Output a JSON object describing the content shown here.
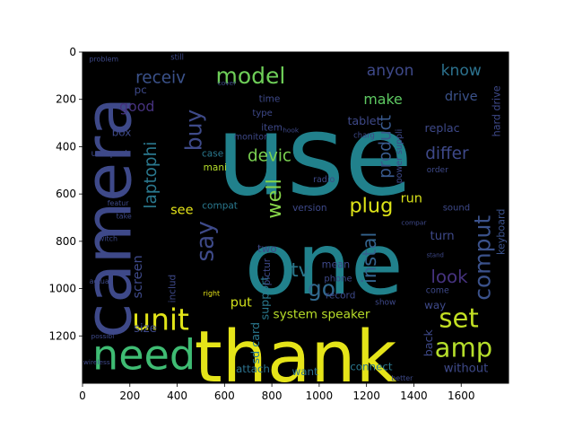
{
  "chart_data": {
    "type": "wordcloud",
    "title": "",
    "xlabel": "",
    "ylabel": "",
    "xlim": [
      0,
      1800
    ],
    "ylim": [
      1400,
      0
    ],
    "image_width": 1800,
    "image_height": 1400,
    "x_ticks": [
      0,
      200,
      400,
      600,
      800,
      1000,
      1200,
      1400,
      1600
    ],
    "y_ticks": [
      0,
      200,
      400,
      600,
      800,
      1000,
      1200
    ],
    "x_tick_labels": [
      "0",
      "200",
      "400",
      "600",
      "800",
      "1000",
      "1200",
      "1400",
      "1600"
    ],
    "y_tick_labels": [
      "0",
      "200",
      "400",
      "600",
      "800",
      "1000",
      "1200"
    ],
    "background": "#000000",
    "colormap": "viridis",
    "words": [
      {
        "text": "use",
        "x": 980,
        "y": 440,
        "size": 470,
        "color": "#21818c",
        "rot": 0
      },
      {
        "text": "one",
        "x": 1020,
        "y": 900,
        "size": 360,
        "color": "#21818c",
        "rot": 0
      },
      {
        "text": "thank",
        "x": 900,
        "y": 1290,
        "size": 300,
        "color": "#e5e419",
        "rot": 0
      },
      {
        "text": "camera",
        "x": 110,
        "y": 700,
        "size": 270,
        "color": "#3e4989",
        "rot": -90
      },
      {
        "text": "need",
        "x": 260,
        "y": 1280,
        "size": 175,
        "color": "#3fbc73",
        "rot": 0
      },
      {
        "text": "unit",
        "x": 330,
        "y": 1130,
        "size": 125,
        "color": "#e2e418",
        "rot": 0
      },
      {
        "text": "amp",
        "x": 1610,
        "y": 1250,
        "size": 110,
        "color": "#b5de2b",
        "rot": 0
      },
      {
        "text": "set",
        "x": 1590,
        "y": 1125,
        "size": 110,
        "color": "#c2df23",
        "rot": 0
      },
      {
        "text": "comput",
        "x": 1690,
        "y": 870,
        "size": 95,
        "color": "#3b528b",
        "rot": -90
      },
      {
        "text": "model",
        "x": 710,
        "y": 100,
        "size": 95,
        "color": "#6ece58",
        "rot": 0
      },
      {
        "text": "go",
        "x": 1010,
        "y": 1000,
        "size": 95,
        "color": "#31688e",
        "rot": 0
      },
      {
        "text": "tv",
        "x": 920,
        "y": 920,
        "size": 80,
        "color": "#2a788e",
        "rot": 0
      },
      {
        "text": "plug",
        "x": 1220,
        "y": 650,
        "size": 85,
        "color": "#dde318",
        "rot": 0
      },
      {
        "text": "buy",
        "x": 470,
        "y": 330,
        "size": 95,
        "color": "#3e4a89",
        "rot": -90
      },
      {
        "text": "say",
        "x": 520,
        "y": 800,
        "size": 100,
        "color": "#3e4a89",
        "rot": -90
      },
      {
        "text": "instal",
        "x": 1210,
        "y": 870,
        "size": 80,
        "color": "#33638d",
        "rot": -90
      },
      {
        "text": "well",
        "x": 810,
        "y": 620,
        "size": 85,
        "color": "#86d549",
        "rot": -90
      },
      {
        "text": "look",
        "x": 1550,
        "y": 950,
        "size": 75,
        "color": "#46337f",
        "rot": 0
      },
      {
        "text": "anyon",
        "x": 1300,
        "y": 80,
        "size": 65,
        "color": "#3e4989",
        "rot": 0
      },
      {
        "text": "know",
        "x": 1600,
        "y": 80,
        "size": 65,
        "color": "#2c728e",
        "rot": 0
      },
      {
        "text": "receiv",
        "x": 330,
        "y": 110,
        "size": 70,
        "color": "#3b528b",
        "rot": 0
      },
      {
        "text": "devic",
        "x": 790,
        "y": 440,
        "size": 70,
        "color": "#7ad151",
        "rot": 0
      },
      {
        "text": "product",
        "x": 1280,
        "y": 400,
        "size": 70,
        "color": "#38598c",
        "rot": -90
      },
      {
        "text": "differ",
        "x": 1540,
        "y": 430,
        "size": 70,
        "color": "#3e4989",
        "rot": 0
      },
      {
        "text": "laptophi",
        "x": 290,
        "y": 520,
        "size": 70,
        "color": "#2a788e",
        "rot": -90
      },
      {
        "text": "screen",
        "x": 235,
        "y": 950,
        "size": 55,
        "color": "#3e4989",
        "rot": -90
      },
      {
        "text": "good",
        "x": 230,
        "y": 230,
        "size": 60,
        "color": "#46327e",
        "rot": 0
      },
      {
        "text": "make",
        "x": 1270,
        "y": 200,
        "size": 60,
        "color": "#5ec962",
        "rot": 0
      },
      {
        "text": "drive",
        "x": 1600,
        "y": 190,
        "size": 55,
        "color": "#3b528b",
        "rot": 0
      },
      {
        "text": "run",
        "x": 1390,
        "y": 620,
        "size": 55,
        "color": "#d8e219",
        "rot": 0
      },
      {
        "text": "system speaker",
        "x": 1010,
        "y": 1110,
        "size": 52,
        "color": "#b8de29",
        "rot": 0
      },
      {
        "text": "sd card",
        "x": 730,
        "y": 1230,
        "size": 48,
        "color": "#2a788e",
        "rot": -90
      },
      {
        "text": "support",
        "x": 770,
        "y": 1040,
        "size": 48,
        "color": "#2a788e",
        "rot": -90
      },
      {
        "text": "hard drive",
        "x": 1750,
        "y": 250,
        "size": 42,
        "color": "#3e4989",
        "rot": -90
      },
      {
        "text": "keyboard",
        "x": 1770,
        "y": 760,
        "size": 42,
        "color": "#3b528b",
        "rot": -90
      },
      {
        "text": "turn",
        "x": 1520,
        "y": 780,
        "size": 50,
        "color": "#3e4989",
        "rot": 0
      },
      {
        "text": "size",
        "x": 265,
        "y": 1170,
        "size": 50,
        "color": "#3e4989",
        "rot": 0
      },
      {
        "text": "put",
        "x": 670,
        "y": 1060,
        "size": 55,
        "color": "#d2e21b",
        "rot": 0
      },
      {
        "text": "attach",
        "x": 720,
        "y": 1340,
        "size": 45,
        "color": "#2c728e",
        "rot": 0
      },
      {
        "text": "without",
        "x": 1620,
        "y": 1340,
        "size": 50,
        "color": "#3e4989",
        "rot": 0
      },
      {
        "text": "want",
        "x": 940,
        "y": 1350,
        "size": 45,
        "color": "#2c728e",
        "rot": 0
      },
      {
        "text": "connect",
        "x": 1220,
        "y": 1330,
        "size": 45,
        "color": "#2a788e",
        "rot": 0
      },
      {
        "text": "back",
        "x": 1460,
        "y": 1230,
        "size": 48,
        "color": "#3e4989",
        "rot": -90
      },
      {
        "text": "way",
        "x": 1490,
        "y": 1070,
        "size": 45,
        "color": "#3e4989",
        "rot": 0
      },
      {
        "text": "see",
        "x": 420,
        "y": 670,
        "size": 55,
        "color": "#e5e419",
        "rot": 0
      },
      {
        "text": "compat",
        "x": 580,
        "y": 650,
        "size": 40,
        "color": "#2a788e",
        "rot": 0
      },
      {
        "text": "case",
        "x": 550,
        "y": 430,
        "size": 40,
        "color": "#2a788e",
        "rot": 0
      },
      {
        "text": "mani",
        "x": 560,
        "y": 490,
        "size": 40,
        "color": "#b5de2b",
        "rot": 0
      },
      {
        "text": "usb port",
        "x": 115,
        "y": 430,
        "size": 38,
        "color": "#3e4989",
        "rot": 0
      },
      {
        "text": "box",
        "x": 165,
        "y": 340,
        "size": 45,
        "color": "#3e4989",
        "rot": 0
      },
      {
        "text": "tablet",
        "x": 1190,
        "y": 290,
        "size": 48,
        "color": "#3e4989",
        "rot": 0
      },
      {
        "text": "replac",
        "x": 1520,
        "y": 320,
        "size": 48,
        "color": "#3e4989",
        "rot": 0
      },
      {
        "text": "mean",
        "x": 1070,
        "y": 900,
        "size": 42,
        "color": "#3e4989",
        "rot": 0
      },
      {
        "text": "phone",
        "x": 1080,
        "y": 960,
        "size": 38,
        "color": "#3e4989",
        "rot": 0
      },
      {
        "text": "record",
        "x": 1090,
        "y": 1030,
        "size": 40,
        "color": "#3e4989",
        "rot": 0
      },
      {
        "text": "sound",
        "x": 1580,
        "y": 660,
        "size": 38,
        "color": "#3e4989",
        "rot": 0
      },
      {
        "text": "version",
        "x": 960,
        "y": 660,
        "size": 40,
        "color": "#3e4989",
        "rot": 0
      },
      {
        "text": "two",
        "x": 780,
        "y": 830,
        "size": 45,
        "color": "#3e4989",
        "rot": 0
      },
      {
        "text": "pictur",
        "x": 780,
        "y": 930,
        "size": 40,
        "color": "#3e4989",
        "rot": -90
      },
      {
        "text": "includ",
        "x": 380,
        "y": 1000,
        "size": 40,
        "color": "#3e4989",
        "rot": -90
      },
      {
        "text": "time",
        "x": 790,
        "y": 200,
        "size": 40,
        "color": "#3e4989",
        "rot": 0
      },
      {
        "text": "type",
        "x": 760,
        "y": 260,
        "size": 38,
        "color": "#3e4989",
        "rot": 0
      },
      {
        "text": "radio",
        "x": 1020,
        "y": 540,
        "size": 36,
        "color": "#3e4989",
        "rot": 0
      },
      {
        "text": "power suppli",
        "x": 1340,
        "y": 440,
        "size": 36,
        "color": "#3e4989",
        "rot": -90
      },
      {
        "text": "monitor",
        "x": 710,
        "y": 360,
        "size": 36,
        "color": "#3e4989",
        "rot": 0
      },
      {
        "text": "item",
        "x": 800,
        "y": 320,
        "size": 40,
        "color": "#3e4989",
        "rot": 0
      },
      {
        "text": "charg",
        "x": 1190,
        "y": 350,
        "size": 32,
        "color": "#3e4989",
        "rot": 0
      },
      {
        "text": "come",
        "x": 1500,
        "y": 1010,
        "size": 36,
        "color": "#3e4989",
        "rot": 0
      },
      {
        "text": "show",
        "x": 1280,
        "y": 1060,
        "size": 34,
        "color": "#3e4989",
        "rot": 0
      },
      {
        "text": "right",
        "x": 545,
        "y": 1020,
        "size": 30,
        "color": "#e5e419",
        "rot": 0
      },
      {
        "text": "order",
        "x": 1500,
        "y": 500,
        "size": 34,
        "color": "#3e4989",
        "rot": 0
      },
      {
        "text": "still",
        "x": 400,
        "y": 20,
        "size": 32,
        "color": "#3e4989",
        "rot": 0
      },
      {
        "text": "problem",
        "x": 90,
        "y": 30,
        "size": 30,
        "color": "#3e4989",
        "rot": 0
      },
      {
        "text": "pc",
        "x": 245,
        "y": 160,
        "size": 45,
        "color": "#3e4989",
        "rot": 0
      },
      {
        "text": "take",
        "x": 175,
        "y": 695,
        "size": 30,
        "color": "#3e4989",
        "rot": 0
      },
      {
        "text": "switch",
        "x": 100,
        "y": 790,
        "size": 30,
        "color": "#3e4989",
        "rot": 0
      },
      {
        "text": "featur",
        "x": 150,
        "y": 640,
        "size": 30,
        "color": "#3e4989",
        "rot": 0
      },
      {
        "text": "actual",
        "x": 75,
        "y": 970,
        "size": 30,
        "color": "#3e4989",
        "rot": 0
      },
      {
        "text": "possibl",
        "x": 85,
        "y": 1200,
        "size": 28,
        "color": "#3e4989",
        "rot": 0
      },
      {
        "text": "wireless",
        "x": 60,
        "y": 1310,
        "size": 28,
        "color": "#3e4989",
        "rot": 0
      },
      {
        "text": "better",
        "x": 1350,
        "y": 1380,
        "size": 30,
        "color": "#3e4989",
        "rot": 0
      },
      {
        "text": "compar",
        "x": 1400,
        "y": 720,
        "size": 28,
        "color": "#3e4989",
        "rot": 0
      },
      {
        "text": "cover",
        "x": 610,
        "y": 130,
        "size": 28,
        "color": "#3e4989",
        "rot": 0
      },
      {
        "text": "hook",
        "x": 880,
        "y": 330,
        "size": 28,
        "color": "#3e4989",
        "rot": 0
      },
      {
        "text": "stand",
        "x": 1490,
        "y": 860,
        "size": 26,
        "color": "#3e4989",
        "rot": 0
      }
    ]
  }
}
